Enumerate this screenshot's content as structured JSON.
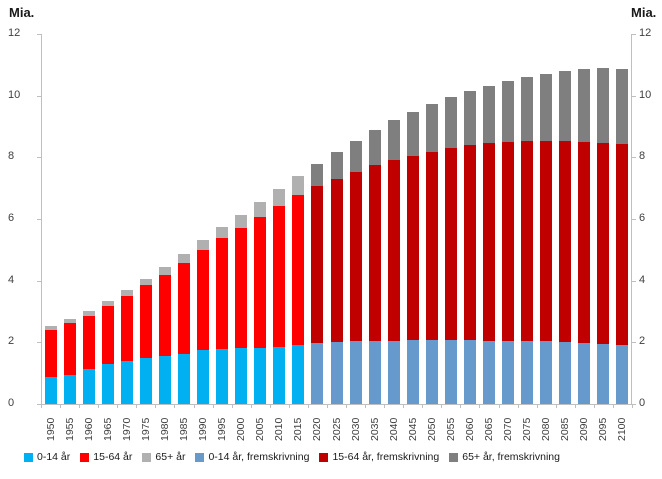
{
  "chart": {
    "left_axis_title": "Mia.",
    "right_axis_title": "Mia."
  },
  "chart_data": {
    "type": "bar",
    "stacked": true,
    "title": "",
    "xlabel": "",
    "ylabel": "Mia.",
    "ylim": [
      0,
      12
    ],
    "y_tick_step": 2,
    "y_ticks": [
      0,
      2,
      4,
      6,
      8,
      10,
      12
    ],
    "grid": false,
    "legend_position": "bottom",
    "projection_from_category": "2020",
    "categories": [
      "1950",
      "1955",
      "1960",
      "1965",
      "1970",
      "1975",
      "1980",
      "1985",
      "1990",
      "1995",
      "2000",
      "2005",
      "2010",
      "2015",
      "2020",
      "2025",
      "2030",
      "2035",
      "2040",
      "2045",
      "2050",
      "2055",
      "2060",
      "2065",
      "2070",
      "2075",
      "2080",
      "2085",
      "2090",
      "2095",
      "2100"
    ],
    "series": [
      {
        "name": "0-14 år",
        "name_projection": "0-14 år, fremskrivning",
        "color": "#00B0F0",
        "color_projection": "#6699CC",
        "values": [
          0.87,
          0.95,
          1.12,
          1.29,
          1.38,
          1.49,
          1.56,
          1.63,
          1.74,
          1.8,
          1.83,
          1.82,
          1.85,
          1.91,
          1.98,
          2.02,
          2.03,
          2.04,
          2.05,
          2.06,
          2.06,
          2.06,
          2.06,
          2.05,
          2.05,
          2.04,
          2.03,
          2.01,
          1.99,
          1.95,
          1.9
        ]
      },
      {
        "name": "15-64 år",
        "name_projection": "15-64 år, fremskrivning",
        "color": "#FF0000",
        "color_projection": "#C00000",
        "values": [
          1.53,
          1.68,
          1.75,
          1.88,
          2.13,
          2.36,
          2.64,
          2.95,
          3.26,
          3.57,
          3.89,
          4.25,
          4.57,
          4.86,
          5.09,
          5.28,
          5.51,
          5.7,
          5.85,
          5.99,
          6.12,
          6.24,
          6.33,
          6.41,
          6.45,
          6.49,
          6.5,
          6.51,
          6.52,
          6.53,
          6.53
        ]
      },
      {
        "name": "65+ år",
        "name_projection": "65+ år, fremskrivning",
        "color": "#B0B0B0",
        "color_projection": "#7F7F7F",
        "values": [
          0.13,
          0.14,
          0.15,
          0.17,
          0.19,
          0.22,
          0.26,
          0.29,
          0.33,
          0.37,
          0.42,
          0.48,
          0.54,
          0.62,
          0.73,
          0.87,
          1.0,
          1.14,
          1.3,
          1.43,
          1.55,
          1.65,
          1.76,
          1.86,
          1.98,
          2.08,
          2.19,
          2.28,
          2.35,
          2.41,
          2.45
        ]
      }
    ],
    "legend": [
      {
        "label": "0-14 år",
        "color": "#00B0F0"
      },
      {
        "label": "15-64 år",
        "color": "#FF0000"
      },
      {
        "label": "65+ år",
        "color": "#B0B0B0"
      },
      {
        "label": "0-14 år, fremskrivning",
        "color": "#6699CC"
      },
      {
        "label": "15-64 år, fremskrivning",
        "color": "#C00000"
      },
      {
        "label": "65+ år, fremskrivning",
        "color": "#7F7F7F"
      }
    ]
  }
}
